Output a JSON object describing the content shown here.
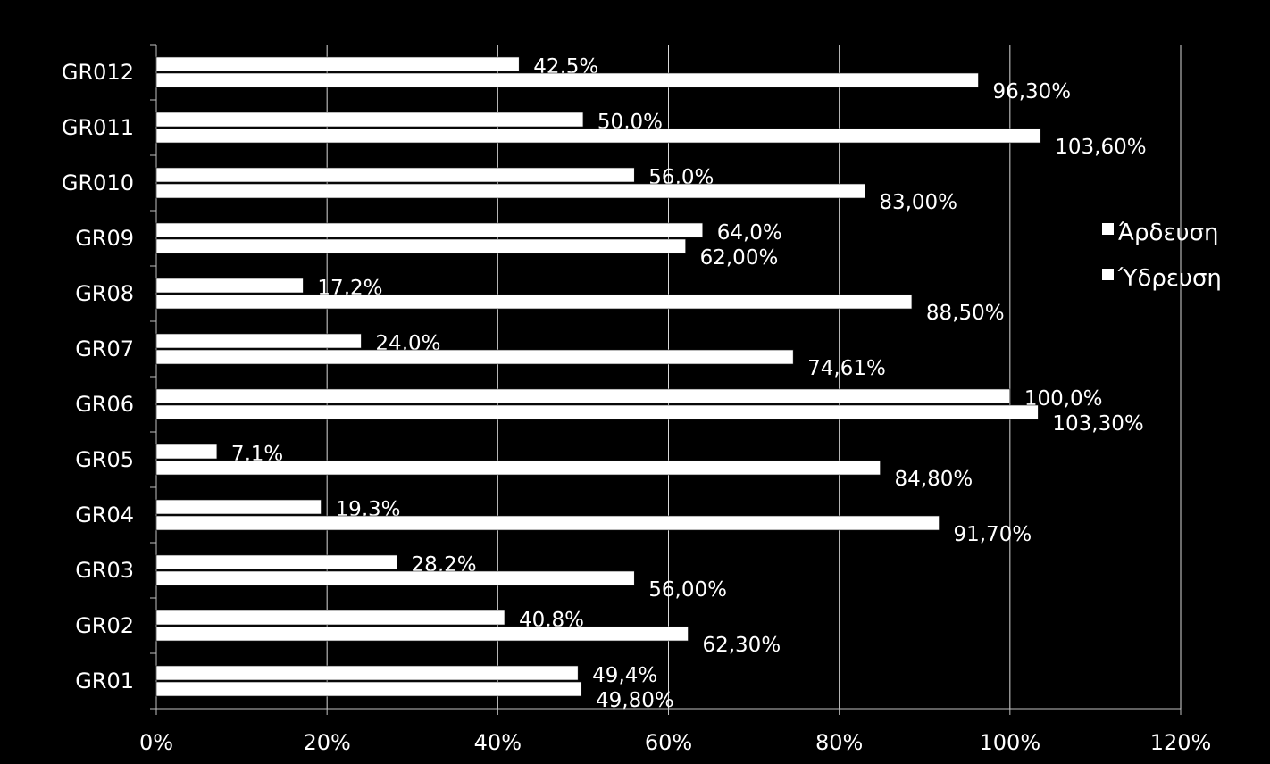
{
  "chart_data": {
    "type": "bar",
    "orientation": "horizontal",
    "categories": [
      "GR012",
      "GR011",
      "GR010",
      "GR09",
      "GR08",
      "GR07",
      "GR06",
      "GR05",
      "GR04",
      "GR03",
      "GR02",
      "GR01"
    ],
    "series": [
      {
        "name": "Άρδευση",
        "color": "#ffffff",
        "values": [
          42.5,
          50.0,
          56.0,
          64.0,
          17.2,
          24.0,
          100.0,
          7.1,
          19.3,
          28.2,
          40.8,
          49.4
        ],
        "labels": [
          "42,5%",
          "50,0%",
          "56,0%",
          "64,0%",
          "17,2%",
          "24,0%",
          "100,0%",
          "7,1%",
          "19,3%",
          "28,2%",
          "40,8%",
          "49,4%"
        ]
      },
      {
        "name": "Ύδρευση",
        "color": "#ffffff",
        "values": [
          96.3,
          103.6,
          83.0,
          62.0,
          88.5,
          74.61,
          103.3,
          84.8,
          91.7,
          56.0,
          62.3,
          49.8
        ],
        "labels": [
          "96,30%",
          "103,60%",
          "83,00%",
          "62,00%",
          "88,50%",
          "74,61%",
          "103,30%",
          "84,80%",
          "91,70%",
          "56,00%",
          "62,30%",
          "49,80%"
        ]
      }
    ],
    "xlim": [
      0,
      120
    ],
    "xticks": [
      0,
      20,
      40,
      60,
      80,
      100,
      120
    ],
    "xtick_labels": [
      "0%",
      "20%",
      "40%",
      "60%",
      "80%",
      "100%",
      "120%"
    ],
    "grid": true,
    "legend_position": "right",
    "title": "",
    "xlabel": "",
    "ylabel": ""
  }
}
